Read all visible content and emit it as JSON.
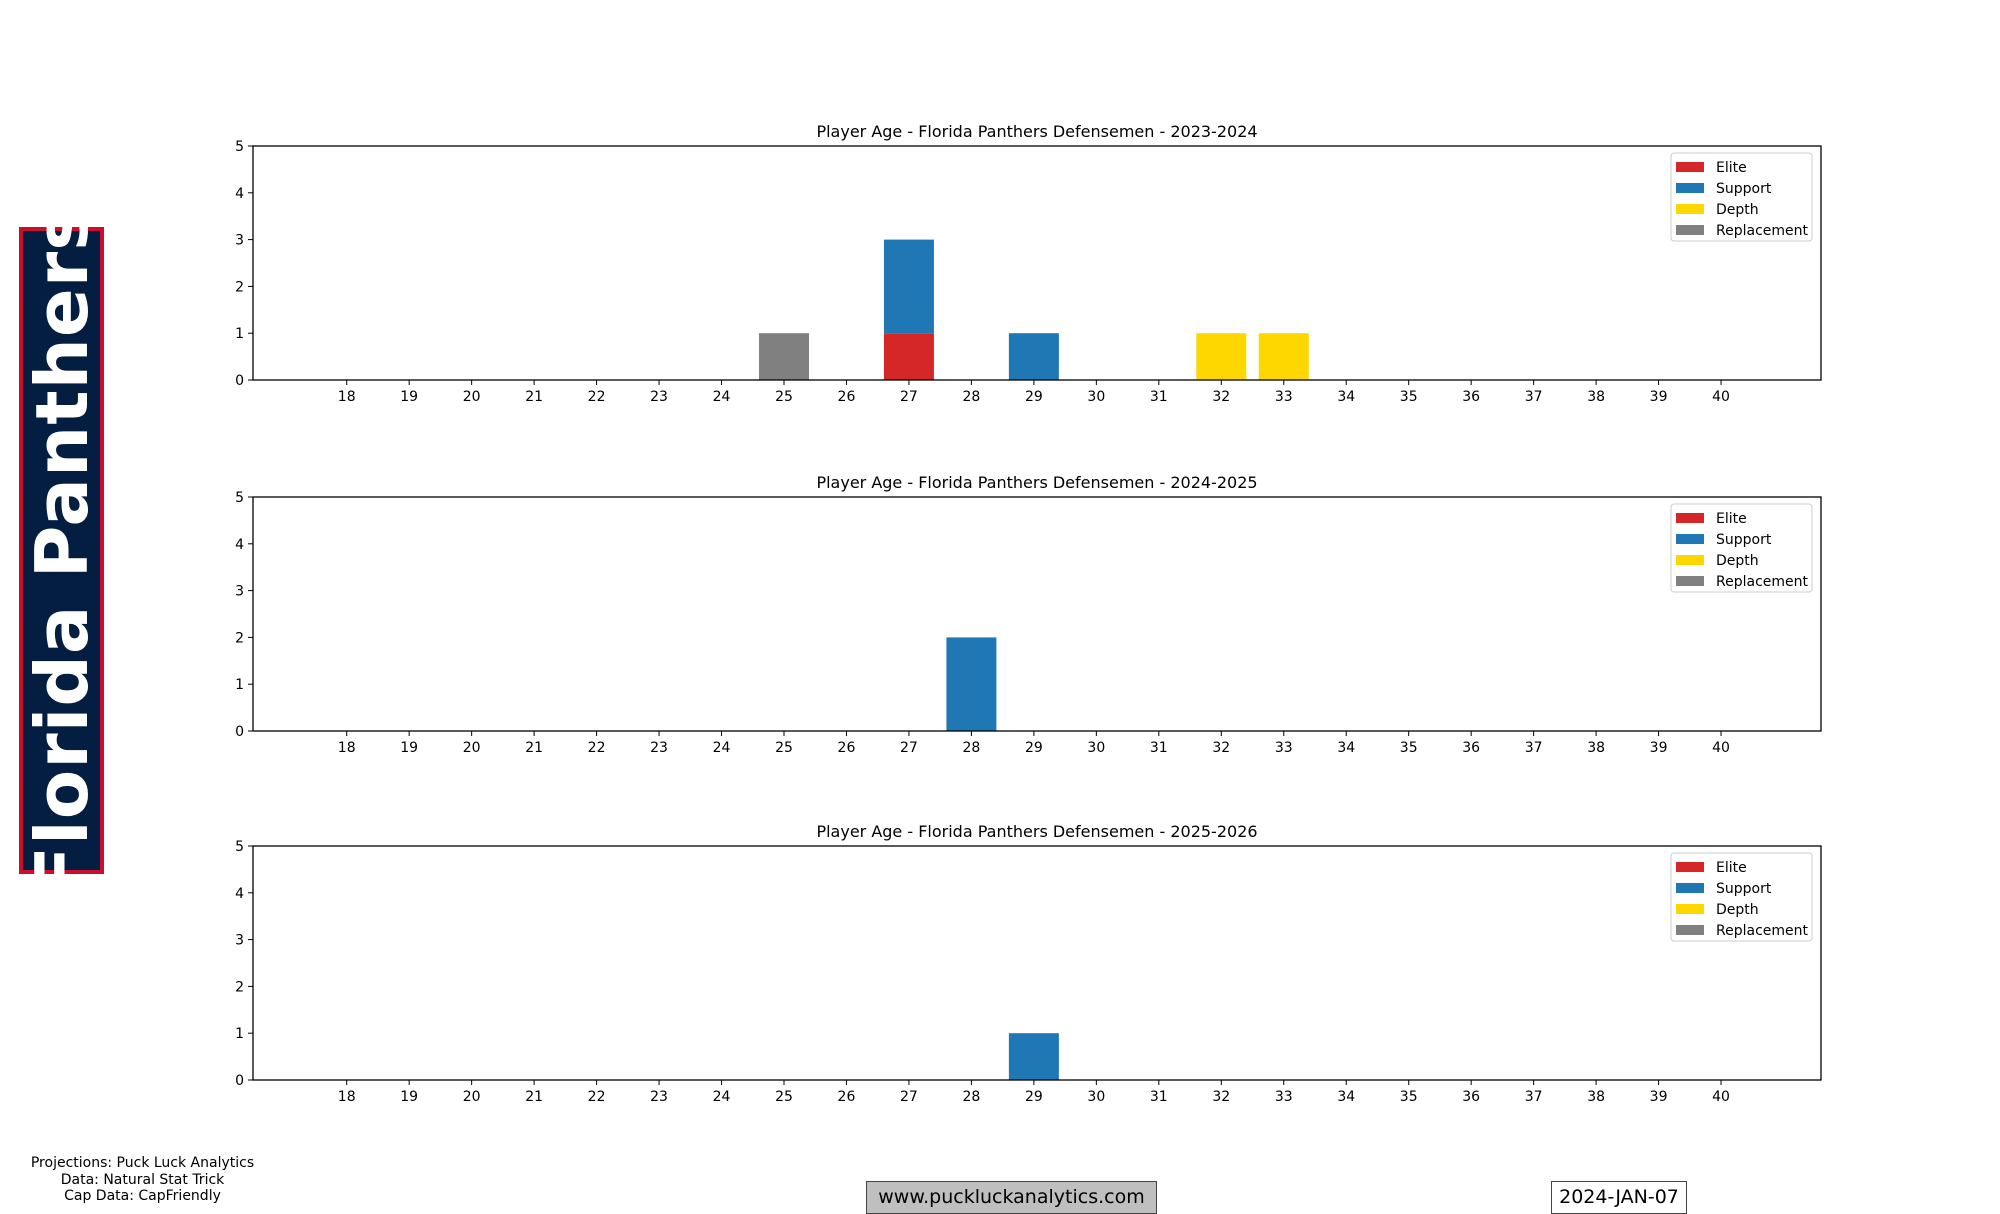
{
  "team_banner": "Florida Panthers",
  "credits": [
    "Projections: Puck Luck Analytics",
    "Data: Natural Stat Trick",
    "Cap Data: CapFriendly"
  ],
  "website": "www.puckluckanalytics.com",
  "date": "2024-JAN-07",
  "colors": {
    "Elite": "#d62728",
    "Support": "#1f77b4",
    "Depth": "#ffd700",
    "Replacement": "#808080",
    "banner_bg": "#041e42",
    "banner_border": "#c8102e"
  },
  "chart_data": [
    {
      "type": "bar",
      "stacked": true,
      "title": "Player Age - Florida Panthers Defensemen - 2023-2024",
      "categories": [
        18,
        19,
        20,
        21,
        22,
        23,
        24,
        25,
        26,
        27,
        28,
        29,
        30,
        31,
        32,
        33,
        34,
        35,
        36,
        37,
        38,
        39,
        40
      ],
      "ylim": [
        0,
        5
      ],
      "yticks": [
        0,
        1,
        2,
        3,
        4,
        5
      ],
      "legend": [
        "Elite",
        "Support",
        "Depth",
        "Replacement"
      ],
      "legend_position": "top-right",
      "series": [
        {
          "name": "Elite",
          "values": {
            "27": 1
          }
        },
        {
          "name": "Support",
          "values": {
            "27": 2,
            "29": 1
          }
        },
        {
          "name": "Depth",
          "values": {
            "32": 1,
            "33": 1
          }
        },
        {
          "name": "Replacement",
          "values": {
            "25": 1
          }
        }
      ]
    },
    {
      "type": "bar",
      "stacked": true,
      "title": "Player Age - Florida Panthers Defensemen - 2024-2025",
      "categories": [
        18,
        19,
        20,
        21,
        22,
        23,
        24,
        25,
        26,
        27,
        28,
        29,
        30,
        31,
        32,
        33,
        34,
        35,
        36,
        37,
        38,
        39,
        40
      ],
      "ylim": [
        0,
        5
      ],
      "yticks": [
        0,
        1,
        2,
        3,
        4,
        5
      ],
      "legend": [
        "Elite",
        "Support",
        "Depth",
        "Replacement"
      ],
      "legend_position": "top-right",
      "series": [
        {
          "name": "Elite",
          "values": {}
        },
        {
          "name": "Support",
          "values": {
            "28": 2
          }
        },
        {
          "name": "Depth",
          "values": {}
        },
        {
          "name": "Replacement",
          "values": {}
        }
      ]
    },
    {
      "type": "bar",
      "stacked": true,
      "title": "Player Age - Florida Panthers Defensemen - 2025-2026",
      "categories": [
        18,
        19,
        20,
        21,
        22,
        23,
        24,
        25,
        26,
        27,
        28,
        29,
        30,
        31,
        32,
        33,
        34,
        35,
        36,
        37,
        38,
        39,
        40
      ],
      "ylim": [
        0,
        5
      ],
      "yticks": [
        0,
        1,
        2,
        3,
        4,
        5
      ],
      "legend": [
        "Elite",
        "Support",
        "Depth",
        "Replacement"
      ],
      "legend_position": "top-right",
      "series": [
        {
          "name": "Elite",
          "values": {}
        },
        {
          "name": "Support",
          "values": {
            "29": 1
          }
        },
        {
          "name": "Depth",
          "values": {}
        },
        {
          "name": "Replacement",
          "values": {}
        }
      ]
    }
  ]
}
